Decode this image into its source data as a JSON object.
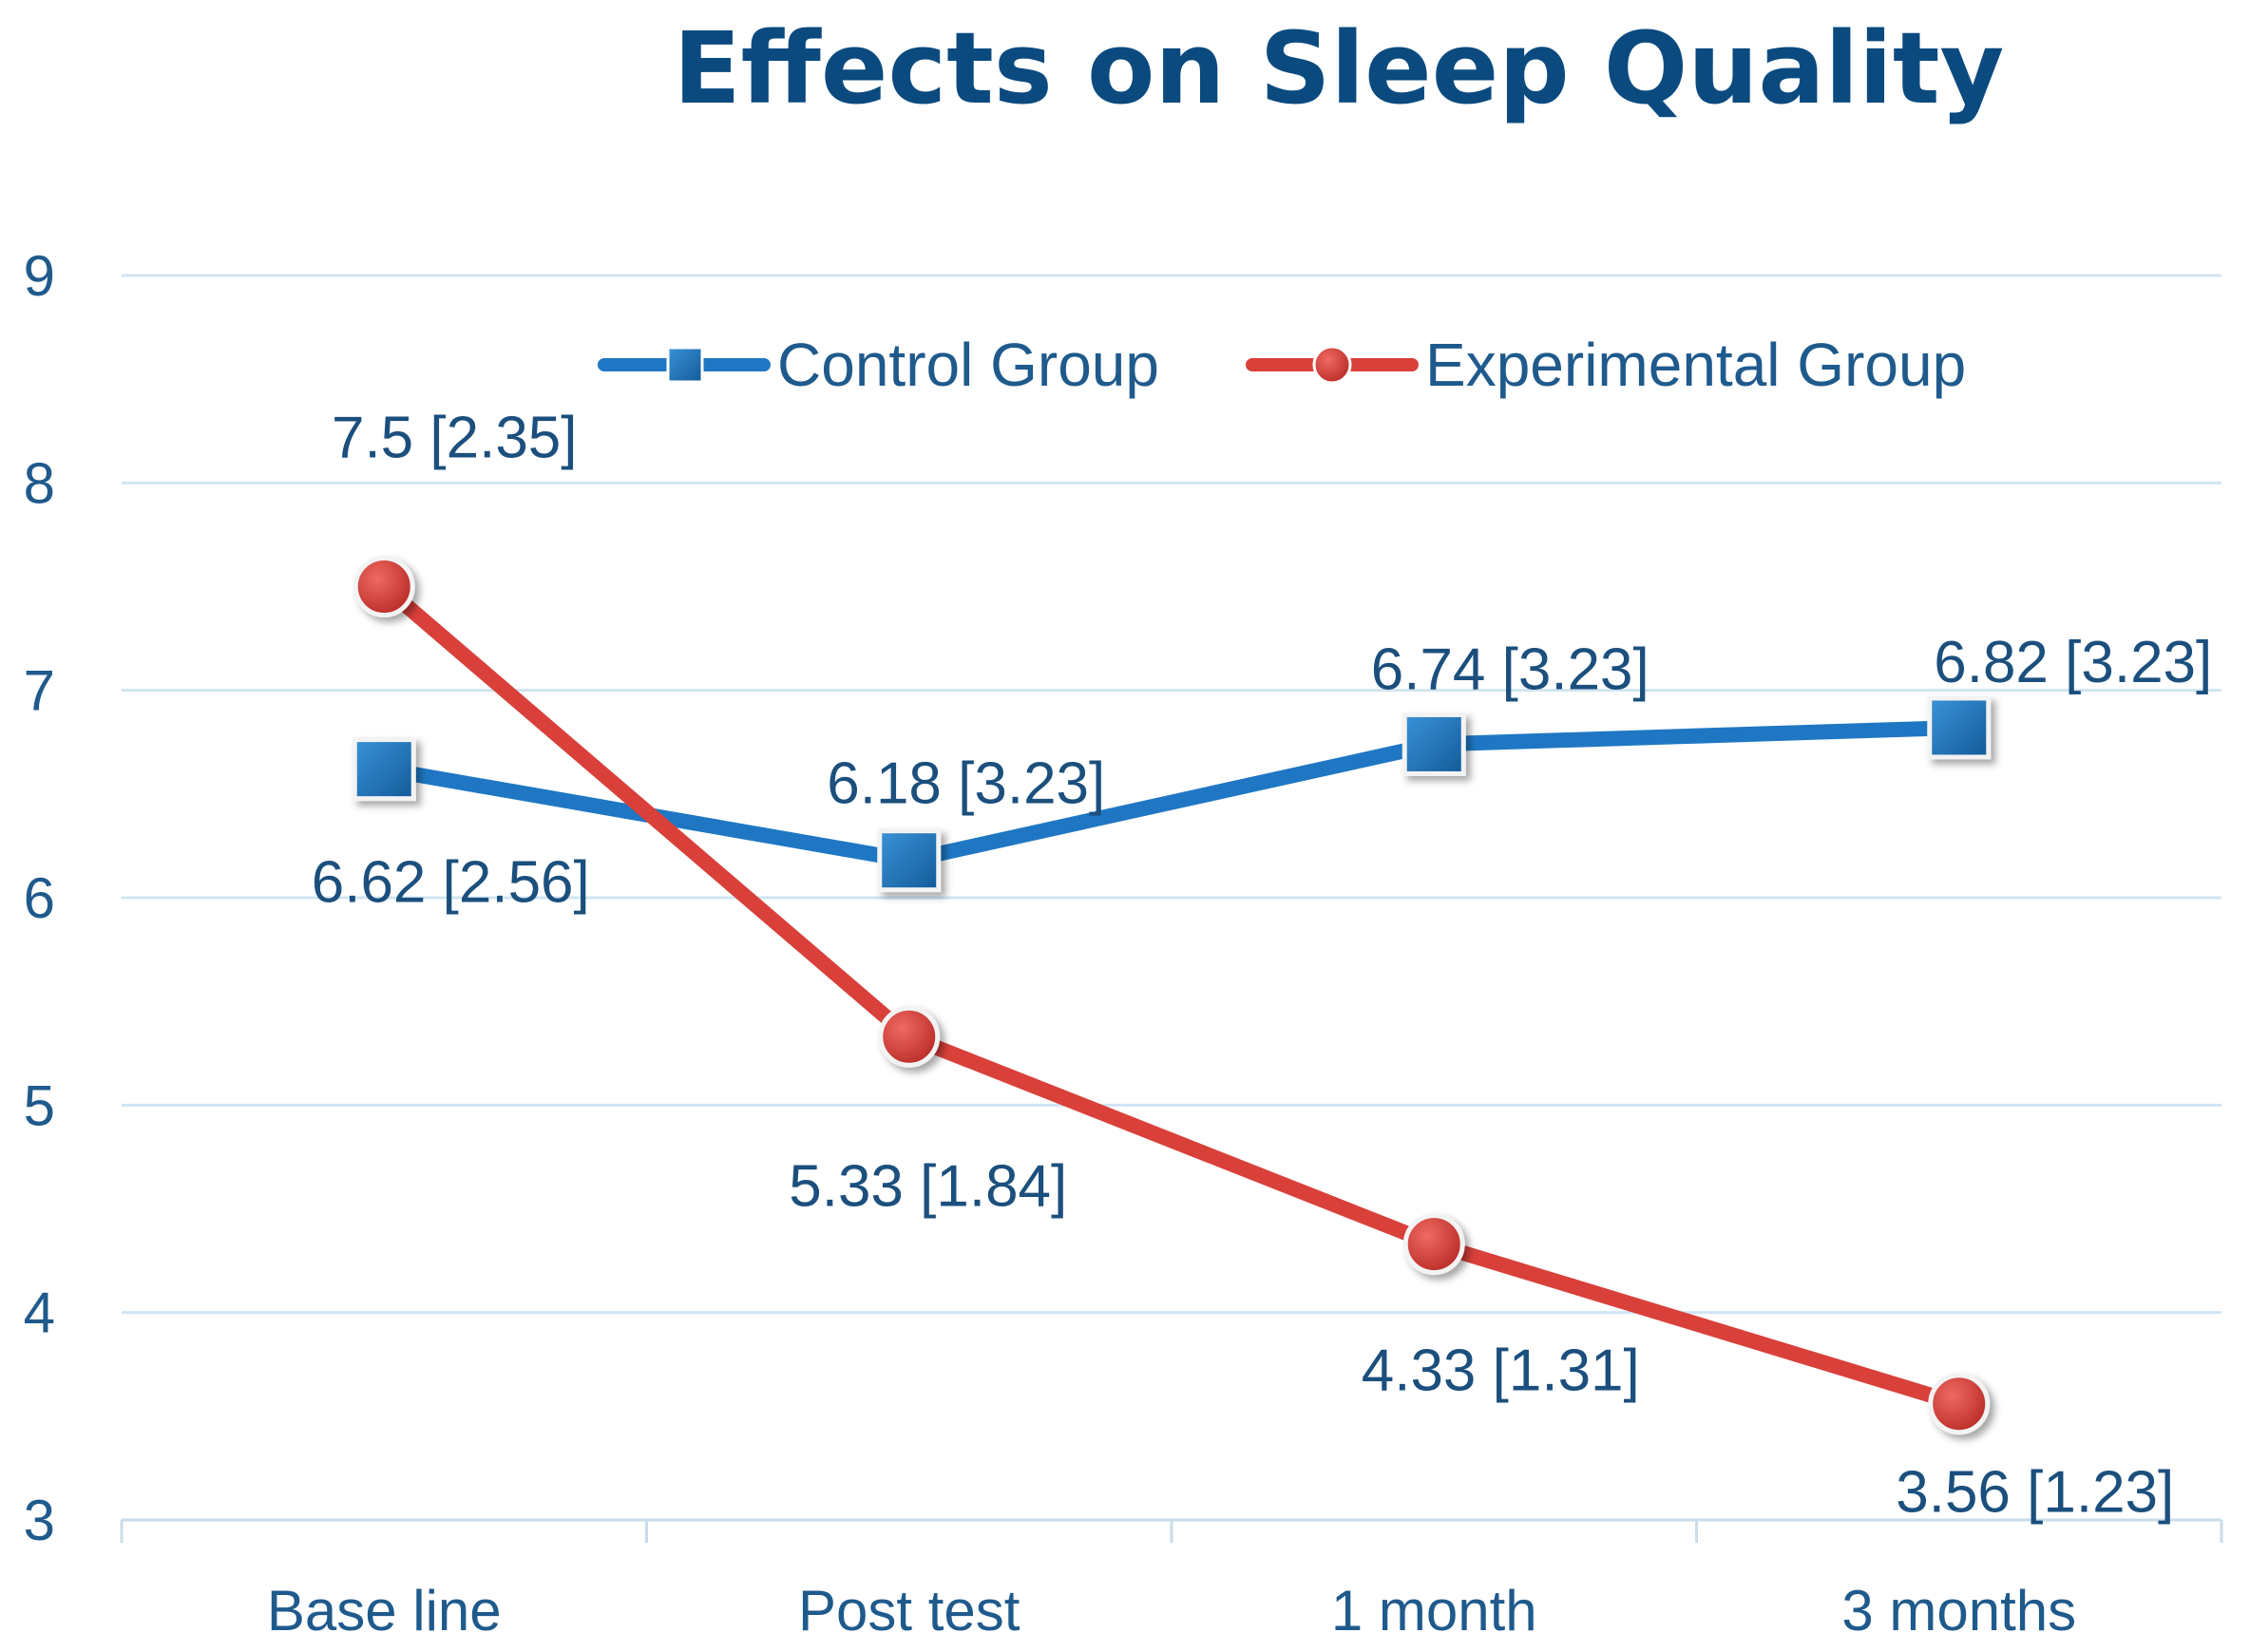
{
  "chart_data": {
    "type": "line",
    "title": "Effects on Sleep Quality",
    "xlabel": "",
    "ylabel": "",
    "categories": [
      "Base line",
      "Post test",
      "1 month",
      "3 months"
    ],
    "ylim": [
      3,
      9
    ],
    "yticks": [
      3,
      4,
      5,
      6,
      7,
      8,
      9
    ],
    "grid": true,
    "legend_position": "top-right",
    "series": [
      {
        "name": "Control Group",
        "color": "#1f77c4",
        "marker": "square",
        "values": [
          6.62,
          6.18,
          6.74,
          6.82
        ],
        "labels": [
          "6.62 [2.56]",
          "6.18 [3.23]",
          "6.74 [3.23]",
          "6.82 [3.23]"
        ]
      },
      {
        "name": "Experimental Group",
        "color": "#d9403a",
        "marker": "circle",
        "values": [
          7.5,
          5.33,
          4.33,
          3.56
        ],
        "labels": [
          "7.5 [2.35]",
          "5.33 [1.84]",
          "4.33 [1.31]",
          "3.56 [1.23]"
        ]
      }
    ]
  }
}
